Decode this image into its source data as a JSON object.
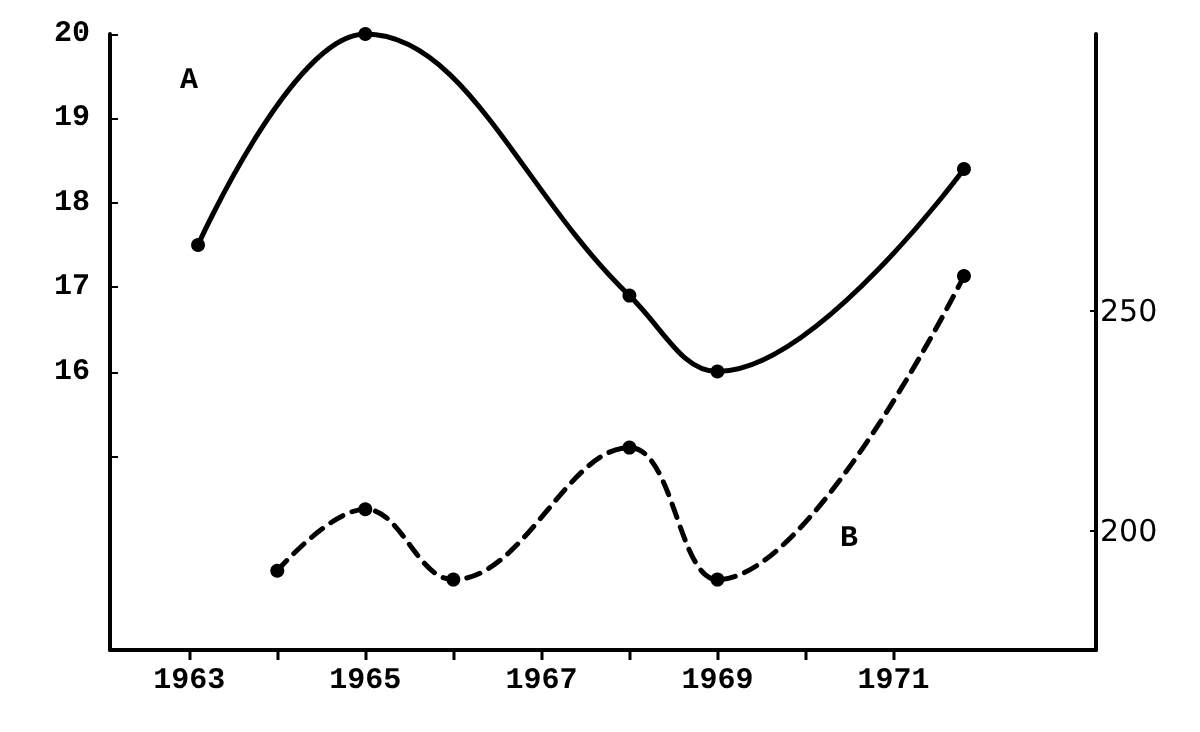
{
  "chart_data": {
    "type": "line",
    "xlim": [
      1962.1,
      1973.3
    ],
    "xticks": [
      1963,
      {
        "value": 1964,
        "label": null
      },
      1965,
      {
        "value": 1966,
        "label": null
      },
      1967,
      {
        "value": 1968,
        "label": null
      },
      1969,
      {
        "value": 1970,
        "label": null
      },
      1971
    ],
    "ylim": [
      12.7,
      20
    ],
    "yticks": [
      {
        "value": 15,
        "label": null
      },
      16,
      17,
      18,
      19,
      20
    ],
    "y2lim": [
      173,
      313
    ],
    "y2ticks": [
      200,
      250
    ],
    "marker": "circle",
    "grid": false,
    "legend": false,
    "series": [
      {
        "name": "A",
        "color": "#000000",
        "line_style": "solid",
        "x": [
          1963.1,
          1965,
          1968,
          1969,
          1971.8
        ],
        "values": [
          17.5,
          20.0,
          16.9,
          16.0,
          18.4
        ]
      },
      {
        "name": "B",
        "color": "#000000",
        "line_style": "dashed",
        "axis": "y2",
        "x": [
          1964,
          1965,
          1966,
          1968,
          1969,
          1971.8
        ],
        "values": [
          191,
          205,
          189,
          219,
          189,
          258
        ]
      }
    ]
  }
}
